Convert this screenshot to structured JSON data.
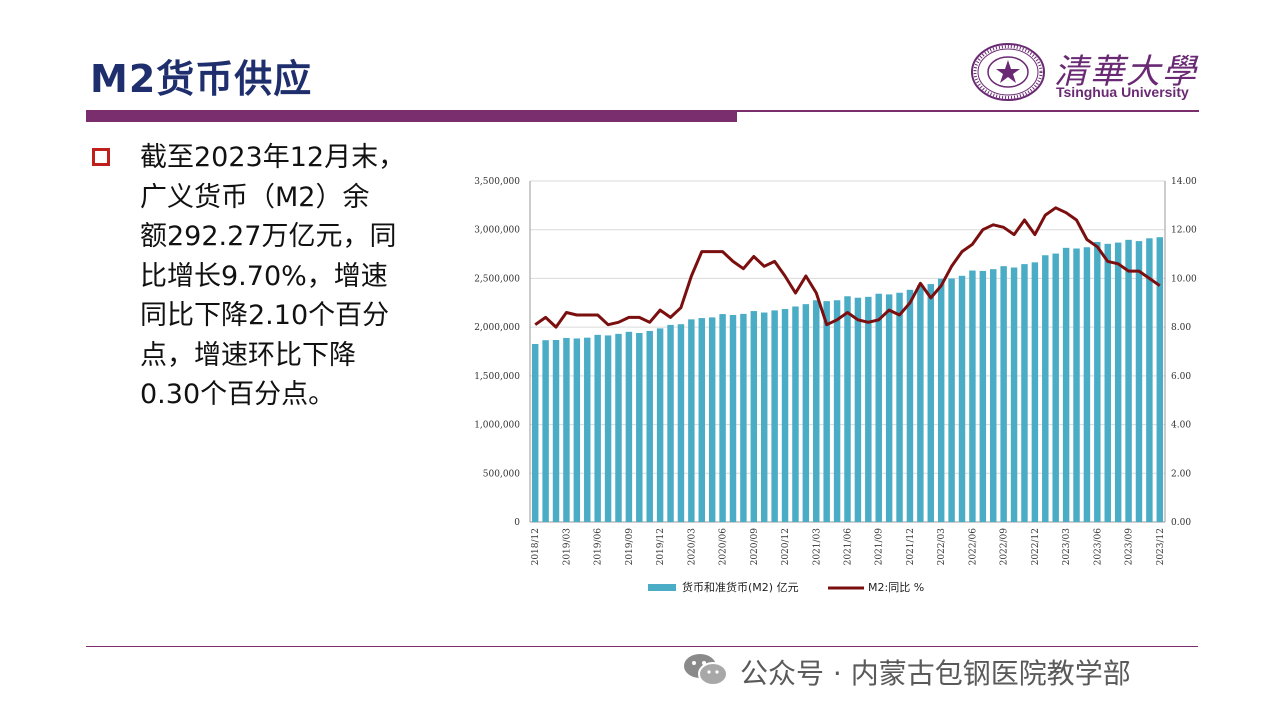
{
  "slide": {
    "title": "M2货币供应"
  },
  "logo": {
    "chinese": "清華大學",
    "english": "Tsinghua University",
    "seal_color": "#6a2a73"
  },
  "bullet": {
    "icon": "hollow-square-bullet-icon",
    "color": "#c0201b",
    "lines": [
      "截至2023年12月末，",
      "广义货币（M2）余",
      "额292.27万亿元，同",
      "比增长9.70%，增速",
      "同比下降2.10个百分",
      "点，增速环比下降",
      "0.30个百分点。"
    ]
  },
  "watermark": {
    "icon": "wechat-icon",
    "text": "公众号 · 内蒙古包钢医院教学部"
  },
  "chart_data": {
    "type": "bar+line",
    "x": [
      "2018/12",
      "2019/01",
      "2019/02",
      "2019/03",
      "2019/04",
      "2019/05",
      "2019/06",
      "2019/07",
      "2019/08",
      "2019/09",
      "2019/10",
      "2019/11",
      "2019/12",
      "2020/01",
      "2020/02",
      "2020/03",
      "2020/04",
      "2020/05",
      "2020/06",
      "2020/07",
      "2020/08",
      "2020/09",
      "2020/10",
      "2020/11",
      "2020/12",
      "2021/01",
      "2021/02",
      "2021/03",
      "2021/04",
      "2021/05",
      "2021/06",
      "2021/07",
      "2021/08",
      "2021/09",
      "2021/10",
      "2021/11",
      "2021/12",
      "2022/01",
      "2022/02",
      "2022/03",
      "2022/04",
      "2022/05",
      "2022/06",
      "2022/07",
      "2022/08",
      "2022/09",
      "2022/10",
      "2022/11",
      "2022/12",
      "2023/01",
      "2023/02",
      "2023/03",
      "2023/04",
      "2023/05",
      "2023/06",
      "2023/07",
      "2023/08",
      "2023/09",
      "2023/10",
      "2023/11",
      "2023/12"
    ],
    "x_tick_labels": [
      "2018/12",
      "2019/03",
      "2019/06",
      "2019/09",
      "2019/12",
      "2020/03",
      "2020/06",
      "2020/09",
      "2020/12",
      "2021/03",
      "2021/06",
      "2021/09",
      "2021/12",
      "2022/03",
      "2022/06",
      "2022/09",
      "2022/12",
      "2023/03",
      "2023/06",
      "2023/09",
      "2023/12"
    ],
    "series": [
      {
        "name": "货币和准货币(M2) 亿元",
        "type": "bar",
        "axis": "left",
        "color": "#4bacc6",
        "values": [
          1827000,
          1866000,
          1868000,
          1889000,
          1884000,
          1892000,
          1921000,
          1915000,
          1931000,
          1952000,
          1940000,
          1961000,
          1987000,
          2023000,
          2030000,
          2080000,
          2093000,
          2100000,
          2134000,
          2125000,
          2136000,
          2165000,
          2150000,
          2172000,
          2186000,
          2212000,
          2236000,
          2276000,
          2267000,
          2276000,
          2317000,
          2302000,
          2311000,
          2343000,
          2336000,
          2353000,
          2383000,
          2431000,
          2442000,
          2497000,
          2499000,
          2527000,
          2581000,
          2577000,
          2595000,
          2626000,
          2612000,
          2647000,
          2665000,
          2738000,
          2755000,
          2814000,
          2807000,
          2820000,
          2874000,
          2855000,
          2868000,
          2896000,
          2883000,
          2912000,
          2923000
        ]
      },
      {
        "name": "M2:同比 %",
        "type": "line",
        "axis": "right",
        "color": "#7b0f0f",
        "values": [
          8.1,
          8.4,
          8.0,
          8.6,
          8.5,
          8.5,
          8.5,
          8.1,
          8.2,
          8.4,
          8.4,
          8.2,
          8.7,
          8.4,
          8.8,
          10.1,
          11.1,
          11.1,
          11.1,
          10.7,
          10.4,
          10.9,
          10.5,
          10.7,
          10.1,
          9.4,
          10.1,
          9.4,
          8.1,
          8.3,
          8.6,
          8.3,
          8.2,
          8.3,
          8.7,
          8.5,
          9.0,
          9.8,
          9.2,
          9.7,
          10.5,
          11.1,
          11.4,
          12.0,
          12.2,
          12.1,
          11.8,
          12.4,
          11.8,
          12.6,
          12.9,
          12.7,
          12.4,
          11.6,
          11.3,
          10.7,
          10.6,
          10.3,
          10.3,
          10.0,
          9.7
        ]
      }
    ],
    "y_left": {
      "min": 0,
      "max": 3500000,
      "step": 500000,
      "tick_labels": [
        "0",
        "500,000",
        "1,000,000",
        "1,500,000",
        "2,000,000",
        "2,500,000",
        "3,000,000",
        "3,500,000"
      ]
    },
    "y_right": {
      "min": 0,
      "max": 14,
      "step": 2,
      "tick_labels": [
        "0.00",
        "2.00",
        "4.00",
        "6.00",
        "8.00",
        "10.00",
        "12.00",
        "14.00"
      ]
    },
    "grid": true,
    "legend": {
      "position": "bottom",
      "entries": [
        "货币和准货币(M2) 亿元",
        "M2:同比 %"
      ]
    }
  }
}
